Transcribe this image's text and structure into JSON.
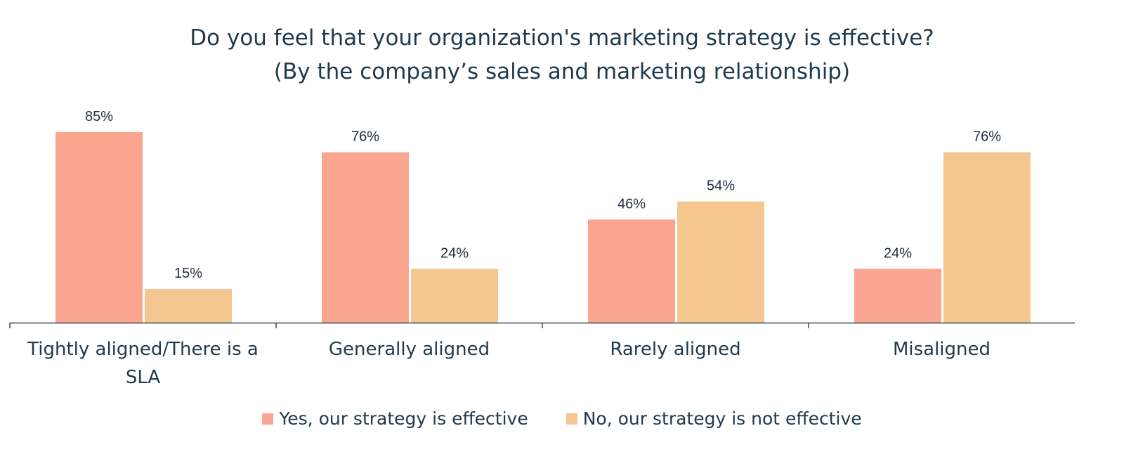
{
  "chart_data": {
    "type": "bar",
    "title": "Do you feel that your organization's marketing strategy is effective?",
    "subtitle": "(By the company’s sales and marketing relationship)",
    "categories": [
      "Tightly aligned/There is a SLA",
      "Generally aligned",
      "Rarely aligned",
      "Misaligned"
    ],
    "category_lines": [
      [
        "Tightly aligned/There is a",
        "SLA"
      ],
      [
        "Generally aligned"
      ],
      [
        "Rarely aligned"
      ],
      [
        "Misaligned"
      ]
    ],
    "series": [
      {
        "name": "Yes, our strategy  is effective",
        "values": [
          85,
          76,
          46,
          24
        ],
        "labels": [
          "85%",
          "76%",
          "46%",
          "24%"
        ],
        "color": "#f9a590"
      },
      {
        "name": "No, our strategy is not effective",
        "values": [
          15,
          24,
          54,
          76
        ],
        "labels": [
          "15%",
          "24%",
          "54%",
          "76%"
        ],
        "color": "#f4c690"
      }
    ],
    "ylim": [
      0,
      100
    ],
    "grid": false,
    "legend_position": "bottom",
    "xlabel": "",
    "ylabel": ""
  }
}
